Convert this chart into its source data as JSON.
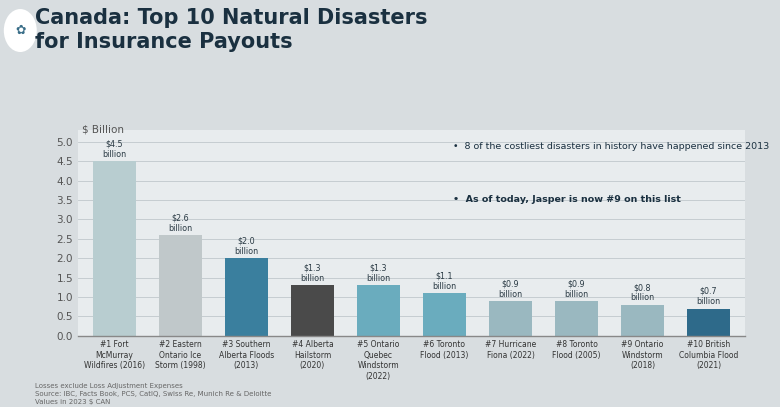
{
  "title_line1": "Canada: Top 10 Natural Disasters",
  "title_line2": "for Insurance Payouts",
  "ylabel": "$ Billion",
  "ylim": [
    0,
    5.3
  ],
  "yticks": [
    0.0,
    0.5,
    1.0,
    1.5,
    2.0,
    2.5,
    3.0,
    3.5,
    4.0,
    4.5,
    5.0
  ],
  "categories": [
    "#1 Fort\nMcMurray\nWildfires (2016)",
    "#2 Eastern\nOntario Ice\nStorm (1998)",
    "#3 Southern\nAlberta Floods\n(2013)",
    "#4 Alberta\nHailstorm\n(2020)",
    "#5 Ontario\nQuebec\nWindstorm\n(2022)",
    "#6 Toronto\nFlood (2013)",
    "#7 Hurricane\nFiona (2022)",
    "#8 Toronto\nFlood (2005)",
    "#9 Ontario\nWindstorm\n(2018)",
    "#10 British\nColumbia Flood\n(2021)"
  ],
  "values": [
    4.5,
    2.6,
    2.0,
    1.3,
    1.3,
    1.1,
    0.9,
    0.9,
    0.8,
    0.7
  ],
  "labels": [
    "$4.5\nbillion",
    "$2.6\nbillion",
    "$2.0\nbillion",
    "$1.3\nbillion",
    "$1.3\nbillion",
    "$1.1\nbillion",
    "$0.9\nbillion",
    "$0.9\nbillion",
    "$0.8\nbillion",
    "$0.7\nbillion"
  ],
  "bar_colors": [
    "#b8cdd0",
    "#c0c8ca",
    "#3a7f9e",
    "#4a4a4a",
    "#6aacbe",
    "#6aacbe",
    "#9ab8c0",
    "#9ab8c0",
    "#9ab8c0",
    "#2e6a8a"
  ],
  "annotation_bullet1": "8 of the costliest disasters in history have happened since 2013",
  "annotation_bullet2": "As of today, Jasper is now #9 on this list",
  "footnote": "Losses exclude Loss Adjustment Expenses\nSource: IBC, Facts Book, PCS, CatIQ, Swiss Re, Munich Re & Deloitte\nValues in 2023 $ CAN",
  "bg_outer": "#d8dde0",
  "bg_chart": "#e8ecee",
  "sidebar_color": "#3a6e88",
  "title_color": "#1a3040",
  "annotation_box_color": "#d8e2e6",
  "label_color": "#2a3a44",
  "axis_text_color": "#555555",
  "grid_color": "#c0c8cc"
}
